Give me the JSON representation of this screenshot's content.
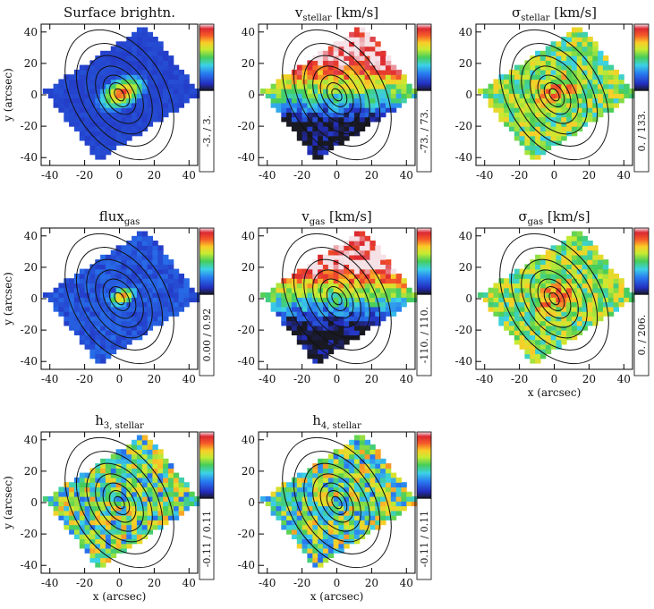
{
  "figure": {
    "type": "kinematic-maps",
    "x_axis_label": "x (arcsec)",
    "y_axis_label": "y (arcsec)",
    "ticks": [
      "-40",
      "-20",
      "0",
      "20",
      "40"
    ]
  },
  "chart_data": [
    {
      "type": "heatmap",
      "id": "surface-brightness",
      "title_main": "Surface brightn.",
      "title_sub": "",
      "title_suffix": "",
      "cb_label": "-3. / 3.",
      "cb_min": -3,
      "cb_max": 3,
      "xlim": [
        -45,
        45
      ],
      "ylim": [
        -45,
        45
      ],
      "map_style": "sb"
    },
    {
      "type": "heatmap",
      "id": "v-stellar",
      "title_main": "v",
      "title_sub": "stellar",
      "title_suffix": " [km/s]",
      "cb_label": "-73. / 73.",
      "cb_min": -73,
      "cb_max": 73,
      "xlim": [
        -45,
        45
      ],
      "ylim": [
        -45,
        45
      ],
      "map_style": "vel"
    },
    {
      "type": "heatmap",
      "id": "sigma-stellar",
      "title_main": "σ",
      "title_sub": "stellar",
      "title_suffix": " [km/s]",
      "cb_label": "0. / 133.",
      "cb_min": 0,
      "cb_max": 133,
      "xlim": [
        -45,
        45
      ],
      "ylim": [
        -45,
        45
      ],
      "map_style": "sig"
    },
    {
      "type": "heatmap",
      "id": "flux-gas",
      "title_main": "flux",
      "title_sub": "gas",
      "title_suffix": "",
      "cb_label": "0.00 / 0.92",
      "cb_min": 0.0,
      "cb_max": 0.92,
      "xlim": [
        -45,
        45
      ],
      "ylim": [
        -45,
        45
      ],
      "map_style": "flux"
    },
    {
      "type": "heatmap",
      "id": "v-gas",
      "title_main": "v",
      "title_sub": "gas",
      "title_suffix": " [km/s]",
      "cb_label": "-110. / 110.",
      "cb_min": -110,
      "cb_max": 110,
      "xlim": [
        -45,
        45
      ],
      "ylim": [
        -45,
        45
      ],
      "map_style": "vel"
    },
    {
      "type": "heatmap",
      "id": "sigma-gas",
      "title_main": "σ",
      "title_sub": "gas",
      "title_suffix": " [km/s]",
      "cb_label": "0. / 206.",
      "cb_min": 0,
      "cb_max": 206,
      "xlim": [
        -45,
        45
      ],
      "ylim": [
        -45,
        45
      ],
      "map_style": "sig"
    },
    {
      "type": "heatmap",
      "id": "h3-stellar",
      "title_main": "h",
      "title_sub": "3, stellar",
      "title_suffix": "",
      "cb_label": "-0.11 / 0.11",
      "cb_min": -0.11,
      "cb_max": 0.11,
      "xlim": [
        -45,
        45
      ],
      "ylim": [
        -45,
        45
      ],
      "map_style": "noise"
    },
    {
      "type": "heatmap",
      "id": "h4-stellar",
      "title_main": "h",
      "title_sub": "4, stellar",
      "title_suffix": "",
      "cb_label": "-0.11 / 0.11",
      "cb_min": -0.11,
      "cb_max": 0.11,
      "xlim": [
        -45,
        45
      ],
      "ylim": [
        -45,
        45
      ],
      "map_style": "noise"
    }
  ]
}
